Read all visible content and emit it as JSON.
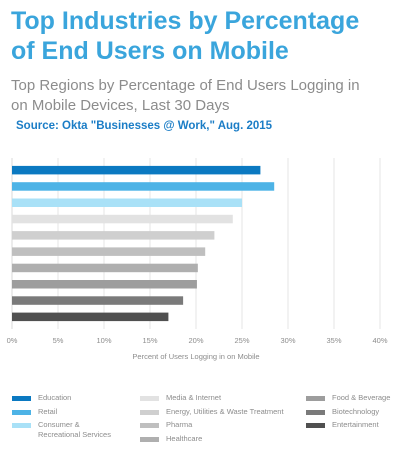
{
  "header": {
    "title_line1": "Top Industries by Percentage",
    "title_line2": "of End Users on Mobile",
    "subtitle_line1": "Top Regions by Percentage of End Users Logging in",
    "subtitle_line2": "on Mobile Devices, Last 30 Days",
    "source": "Source: Okta \"Businesses @ Work,\" Aug. 2015"
  },
  "chart_data": {
    "type": "bar",
    "orientation": "horizontal",
    "xlabel": "Percent of Users Logging in on Mobile",
    "xlim": [
      0,
      40
    ],
    "xticks": [
      "0%",
      "5%",
      "10%",
      "15%",
      "20%",
      "25%",
      "30%",
      "35%",
      "40%"
    ],
    "grid": true,
    "legend_placement": "bottom",
    "bars": [
      {
        "value": 27,
        "color": "#0b79c1"
      },
      {
        "value": 28.5,
        "color": "#4db3e6"
      },
      {
        "value": 25,
        "color": "#a9e1f7"
      },
      {
        "value": 24,
        "color": "#e2e2e2"
      },
      {
        "value": 22,
        "color": "#cfcfcf"
      },
      {
        "value": 21,
        "color": "#bfbfbf"
      },
      {
        "value": 20.2,
        "color": "#afafaf"
      },
      {
        "value": 20.1,
        "color": "#9d9d9d"
      },
      {
        "value": 18.6,
        "color": "#7a7a7a"
      },
      {
        "value": 17,
        "color": "#505050"
      }
    ],
    "legend": [
      {
        "label_lines": [
          "Education"
        ],
        "color": "#0b79c1"
      },
      {
        "label_lines": [
          "Retail"
        ],
        "color": "#4db3e6"
      },
      {
        "label_lines": [
          "Consumer &",
          "Recreational Services"
        ],
        "color": "#a9e1f7"
      },
      {
        "label_lines": [
          "Media & Internet"
        ],
        "color": "#e2e2e2"
      },
      {
        "label_lines": [
          "Energy, Utilities & Waste Treatment"
        ],
        "color": "#cfcfcf"
      },
      {
        "label_lines": [
          "Pharma"
        ],
        "color": "#bfbfbf"
      },
      {
        "label_lines": [
          "Healthcare"
        ],
        "color": "#afafaf"
      },
      {
        "label_lines": [
          "Food & Beverage"
        ],
        "color": "#9d9d9d"
      },
      {
        "label_lines": [
          "Biotechnology"
        ],
        "color": "#7a7a7a"
      },
      {
        "label_lines": [
          "Entertainment"
        ],
        "color": "#505050"
      }
    ]
  }
}
